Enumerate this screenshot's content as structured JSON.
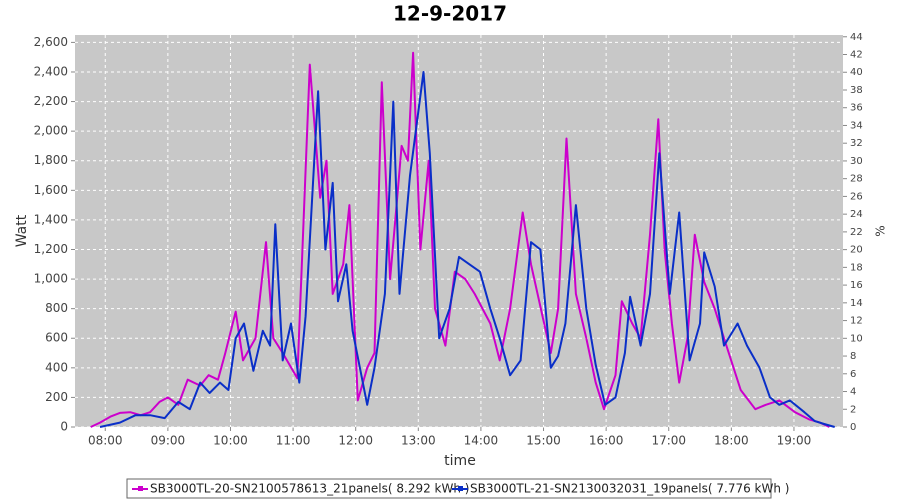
{
  "chart_data": {
    "type": "line",
    "title": "12-9-2017",
    "xlabel": "time",
    "ylabel": "Watt",
    "y2label": "%",
    "xlim": [
      "07:31",
      "19:47"
    ],
    "xticks": [
      "08:00",
      "09:00",
      "10:00",
      "11:00",
      "12:00",
      "13:00",
      "14:00",
      "15:00",
      "16:00",
      "17:00",
      "18:00",
      "19:00"
    ],
    "ylim": [
      0,
      2650
    ],
    "yticks": [
      0,
      200,
      400,
      600,
      800,
      {
        "value": 1000,
        "label": "1,000"
      },
      {
        "value": 1200,
        "label": "1,200"
      },
      {
        "value": 1400,
        "label": "1,400"
      },
      {
        "value": 1600,
        "label": "1,600"
      },
      {
        "value": 1800,
        "label": "1,800"
      },
      {
        "value": 2000,
        "label": "2,000"
      },
      {
        "value": 2200,
        "label": "2,200"
      },
      {
        "value": 2400,
        "label": "2,400"
      },
      {
        "value": 2600,
        "label": "2,600"
      }
    ],
    "y2lim": [
      0,
      44.2
    ],
    "y2ticks": [
      0,
      2,
      4,
      6,
      8,
      10,
      12,
      14,
      16,
      18,
      20,
      22,
      24,
      26,
      28,
      30,
      32,
      34,
      36,
      38,
      40,
      42,
      44
    ],
    "grid": true,
    "legend": "bottom",
    "series": [
      {
        "name": "SB3000TL-20-SN2100578613_21panels( 8.292 kWh  )",
        "color": "#cc00cc",
        "x": [
          "07:46",
          "07:55",
          "08:05",
          "08:14",
          "08:24",
          "08:34",
          "08:43",
          "08:52",
          "09:00",
          "09:10",
          "09:19",
          "09:31",
          "09:39",
          "09:48",
          "09:55",
          "10:05",
          "10:12",
          "10:24",
          "10:34",
          "10:41",
          "10:50",
          "11:04",
          "11:16",
          "11:26",
          "11:32",
          "11:38",
          "11:48",
          "11:54",
          "12:02",
          "12:11",
          "12:18",
          "12:25",
          "12:33",
          "12:38",
          "12:44",
          "12:50",
          "12:55",
          "13:02",
          "13:10",
          "13:16",
          "13:26",
          "13:35",
          "13:45",
          "13:54",
          "14:09",
          "14:18",
          "14:28",
          "14:40",
          "14:48",
          "14:59",
          "15:07",
          "15:14",
          "15:22",
          "15:31",
          "15:41",
          "15:50",
          "15:58",
          "16:09",
          "16:15",
          "16:25",
          "16:33",
          "16:42",
          "16:50",
          "16:56",
          "17:03",
          "17:10",
          "17:18",
          "17:25",
          "17:34",
          "17:44",
          "17:53",
          "18:09",
          "18:23",
          "18:33",
          "18:46",
          "19:01",
          "19:15",
          "19:25",
          "19:34"
        ],
        "values": [
          0,
          30,
          70,
          95,
          100,
          80,
          100,
          170,
          200,
          150,
          320,
          280,
          350,
          320,
          500,
          780,
          450,
          600,
          1250,
          600,
          500,
          330,
          2450,
          1550,
          1800,
          900,
          1100,
          1500,
          180,
          400,
          500,
          2330,
          1000,
          1400,
          1900,
          1800,
          2530,
          1200,
          1800,
          800,
          550,
          1050,
          1000,
          900,
          700,
          450,
          800,
          1450,
          1100,
          750,
          500,
          800,
          1950,
          900,
          600,
          300,
          120,
          350,
          850,
          700,
          600,
          1300,
          2080,
          1200,
          700,
          300,
          600,
          1300,
          980,
          800,
          600,
          250,
          120,
          150,
          180,
          100,
          50,
          30,
          0
        ]
      },
      {
        "name": "SB3000TL-21-SN2130032031_19panels( 7.776 kWh  )",
        "color": "#0a2fc8",
        "x": [
          "07:55",
          "08:14",
          "08:29",
          "08:43",
          "08:57",
          "09:10",
          "09:21",
          "09:31",
          "09:40",
          "09:50",
          "09:58",
          "10:05",
          "10:13",
          "10:22",
          "10:31",
          "10:38",
          "10:43",
          "10:50",
          "10:58",
          "11:06",
          "11:12",
          "11:24",
          "11:31",
          "11:38",
          "11:43",
          "11:51",
          "11:57",
          "12:04",
          "12:11",
          "12:18",
          "12:28",
          "12:36",
          "12:42",
          "12:52",
          "13:05",
          "13:11",
          "13:20",
          "13:30",
          "13:39",
          "13:49",
          "13:59",
          "14:09",
          "14:18",
          "14:28",
          "14:38",
          "14:48",
          "14:57",
          "15:07",
          "15:14",
          "15:21",
          "15:31",
          "15:41",
          "15:50",
          "15:59",
          "16:09",
          "16:18",
          "16:23",
          "16:33",
          "16:42",
          "16:51",
          "17:01",
          "17:10",
          "17:20",
          "17:30",
          "17:34",
          "17:44",
          "17:53",
          "18:06",
          "18:15",
          "18:27",
          "18:37",
          "18:46",
          "18:56",
          "19:10",
          "19:20",
          "19:29",
          "19:39"
        ],
        "values": [
          0,
          30,
          80,
          80,
          60,
          170,
          120,
          300,
          230,
          300,
          250,
          600,
          700,
          380,
          650,
          550,
          1370,
          450,
          700,
          300,
          750,
          2270,
          1200,
          1650,
          850,
          1100,
          650,
          400,
          150,
          400,
          900,
          2200,
          900,
          1700,
          2400,
          1850,
          600,
          800,
          1150,
          1100,
          1050,
          800,
          600,
          350,
          450,
          1250,
          1200,
          400,
          480,
          700,
          1500,
          800,
          420,
          150,
          200,
          500,
          880,
          550,
          900,
          1850,
          900,
          1450,
          450,
          700,
          1180,
          950,
          550,
          700,
          550,
          400,
          200,
          150,
          180,
          100,
          40,
          20,
          0
        ]
      }
    ]
  }
}
